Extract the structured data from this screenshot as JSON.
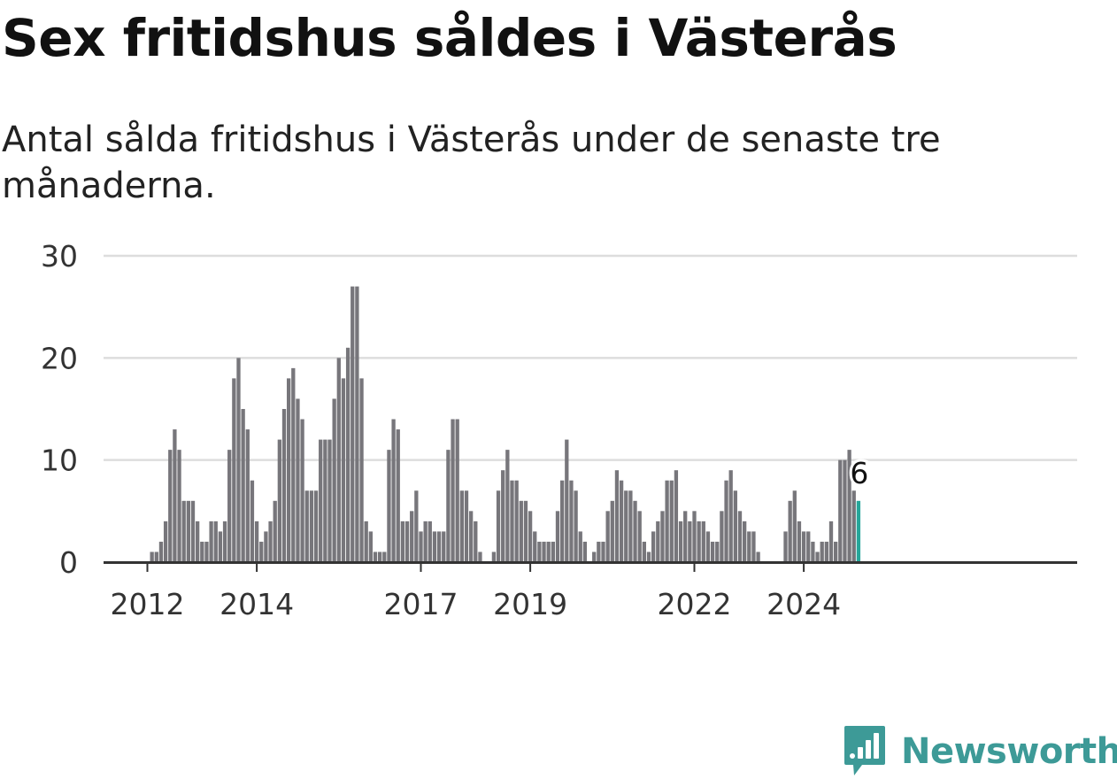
{
  "title": "Sex fritidshus såldes i Västerås",
  "subtitle": "Antal sålda fritidshus i Västerås under de senaste tre månaderna.",
  "brand": {
    "name": "Newsworthy",
    "logo": "newsworthy-logo-icon"
  },
  "colors": {
    "bar": "#77767b",
    "highlight": "#26a69a",
    "grid": "#dddddd",
    "axis": "#333333",
    "brand": "#3d9a97"
  },
  "chart_data": {
    "type": "bar",
    "title": "Sex fritidshus såldes i Västerås",
    "xlabel": "",
    "ylabel": "",
    "ylim": [
      0,
      30
    ],
    "yticks": [
      0,
      10,
      20,
      30
    ],
    "grid": true,
    "x_start": "2011-12",
    "xticks": [
      {
        "label": "2012",
        "index": 0
      },
      {
        "label": "2014",
        "index": 24
      },
      {
        "label": "2017",
        "index": 60
      },
      {
        "label": "2019",
        "index": 84
      },
      {
        "label": "2022",
        "index": 120
      },
      {
        "label": "2024",
        "index": 144
      }
    ],
    "values": [
      0,
      1,
      1,
      2,
      4,
      11,
      13,
      11,
      6,
      6,
      6,
      4,
      2,
      2,
      4,
      4,
      3,
      4,
      11,
      18,
      20,
      15,
      13,
      8,
      4,
      2,
      3,
      4,
      6,
      12,
      15,
      18,
      19,
      16,
      14,
      7,
      7,
      7,
      12,
      12,
      12,
      16,
      20,
      18,
      21,
      27,
      27,
      18,
      4,
      3,
      1,
      1,
      1,
      11,
      14,
      13,
      4,
      4,
      5,
      7,
      3,
      4,
      4,
      3,
      3,
      3,
      11,
      14,
      14,
      7,
      7,
      5,
      4,
      1,
      0,
      0,
      1,
      7,
      9,
      11,
      8,
      8,
      6,
      6,
      5,
      3,
      2,
      2,
      2,
      2,
      5,
      8,
      12,
      8,
      7,
      3,
      2,
      0,
      1,
      2,
      2,
      5,
      6,
      9,
      8,
      7,
      7,
      6,
      5,
      2,
      1,
      3,
      4,
      5,
      8,
      8,
      9,
      4,
      5,
      4,
      5,
      4,
      4,
      3,
      2,
      2,
      5,
      8,
      9,
      7,
      5,
      4,
      3,
      3,
      1,
      0,
      0,
      0,
      0,
      0,
      3,
      6,
      7,
      4,
      3,
      3,
      2,
      1,
      2,
      2,
      4,
      2,
      10,
      10,
      11,
      7,
      6
    ],
    "highlight_index": 156,
    "annotation": {
      "text": "6",
      "index": 156
    }
  }
}
